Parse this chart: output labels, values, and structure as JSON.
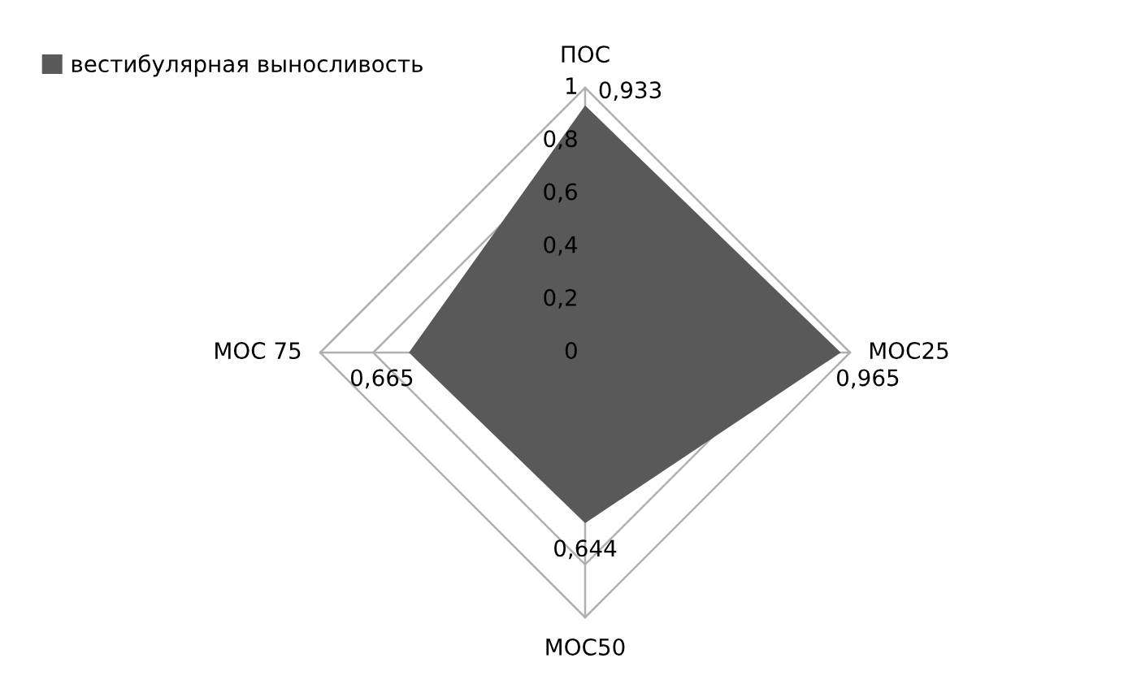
{
  "chart_data": {
    "type": "radar",
    "categories": [
      "ПОС",
      "МОС25",
      "МОС50",
      "МОС 75"
    ],
    "series": [
      {
        "name": "вестибулярная выносливость",
        "color": "#595959",
        "values": [
          0.933,
          0.965,
          0.644,
          0.665
        ],
        "value_labels": [
          "0,933",
          "0,965",
          "0,644",
          "0,665"
        ]
      }
    ],
    "ylim": [
      0,
      1
    ],
    "yticks": [
      {
        "value": 0,
        "label": "0"
      },
      {
        "value": 0.2,
        "label": "0,2"
      },
      {
        "value": 0.4,
        "label": "0,4"
      },
      {
        "value": 0.6,
        "label": "0,6"
      },
      {
        "value": 0.8,
        "label": "0,8"
      },
      {
        "value": 1,
        "label": "1"
      }
    ],
    "grid": true,
    "legend": "top left"
  }
}
